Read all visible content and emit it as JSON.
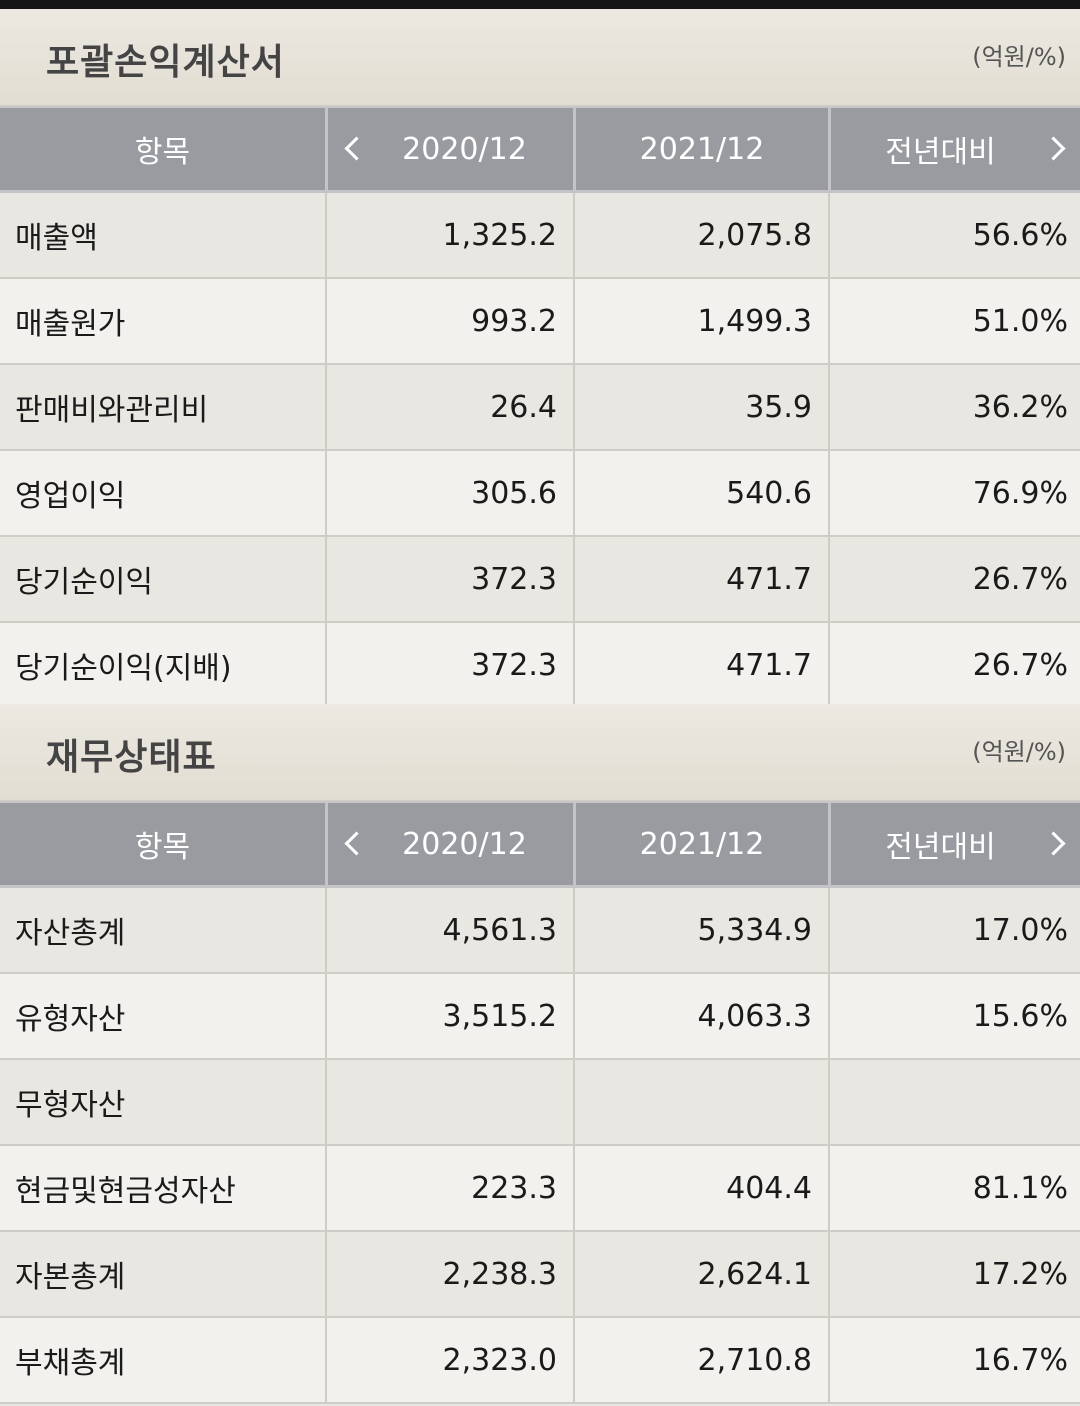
{
  "income": {
    "title": "포괄손익계산서",
    "unit": "(억원/%)",
    "headers": {
      "item": "항목",
      "col1": "2020/12",
      "col2": "2021/12",
      "col3": "전년대비"
    },
    "rows": [
      {
        "label": "매출액",
        "v2020": "1,325.2",
        "v2021": "2,075.8",
        "yoy": "56.6%"
      },
      {
        "label": "매출원가",
        "v2020": "993.2",
        "v2021": "1,499.3",
        "yoy": "51.0%"
      },
      {
        "label": "판매비와관리비",
        "v2020": "26.4",
        "v2021": "35.9",
        "yoy": "36.2%"
      },
      {
        "label": "영업이익",
        "v2020": "305.6",
        "v2021": "540.6",
        "yoy": "76.9%"
      },
      {
        "label": "당기순이익",
        "v2020": "372.3",
        "v2021": "471.7",
        "yoy": "26.7%"
      },
      {
        "label": "당기순이익(지배)",
        "v2020": "372.3",
        "v2021": "471.7",
        "yoy": "26.7%"
      }
    ]
  },
  "balance": {
    "title": "재무상태표",
    "unit": "(억원/%)",
    "headers": {
      "item": "항목",
      "col1": "2020/12",
      "col2": "2021/12",
      "col3": "전년대비"
    },
    "rows": [
      {
        "label": "자산총계",
        "v2020": "4,561.3",
        "v2021": "5,334.9",
        "yoy": "17.0%"
      },
      {
        "label": "유형자산",
        "v2020": "3,515.2",
        "v2021": "4,063.3",
        "yoy": "15.6%"
      },
      {
        "label": "무형자산",
        "v2020": "",
        "v2021": "",
        "yoy": ""
      },
      {
        "label": "현금및현금성자산",
        "v2020": "223.3",
        "v2021": "404.4",
        "yoy": "81.1%"
      },
      {
        "label": "자본총계",
        "v2020": "2,238.3",
        "v2021": "2,624.1",
        "yoy": "17.2%"
      },
      {
        "label": "부채총계",
        "v2020": "2,323.0",
        "v2021": "2,710.8",
        "yoy": "16.7%"
      }
    ]
  },
  "icons": {
    "prev": "chevron-left-icon",
    "next": "chevron-right-icon"
  }
}
